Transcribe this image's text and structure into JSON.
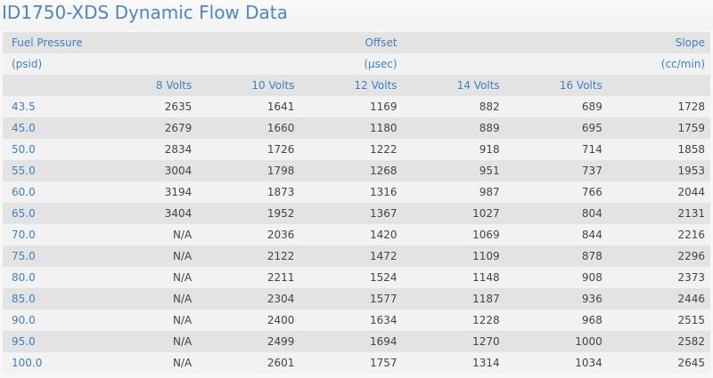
{
  "title": "ID1750-XDS Dynamic Flow Data",
  "header": {
    "fuel_pressure": "Fuel Pressure",
    "psid": "(psid)",
    "offset": "Offset",
    "usec": "(µsec)",
    "slope": "Slope",
    "ccmin": "(cc/min)",
    "volts": [
      "8 Volts",
      "10 Volts",
      "12 Volts",
      "14 Volts",
      "16 Volts"
    ]
  },
  "rows": [
    [
      "43.5",
      "2635",
      "1641",
      "1169",
      "882",
      "689",
      "1728"
    ],
    [
      "45.0",
      "2679",
      "1660",
      "1180",
      "889",
      "695",
      "1759"
    ],
    [
      "50.0",
      "2834",
      "1726",
      "1222",
      "918",
      "714",
      "1858"
    ],
    [
      "55.0",
      "3004",
      "1798",
      "1268",
      "951",
      "737",
      "1953"
    ],
    [
      "60.0",
      "3194",
      "1873",
      "1316",
      "987",
      "766",
      "2044"
    ],
    [
      "65.0",
      "3404",
      "1952",
      "1367",
      "1027",
      "804",
      "2131"
    ],
    [
      "70.0",
      "N/A",
      "2036",
      "1420",
      "1069",
      "844",
      "2216"
    ],
    [
      "75.0",
      "N/A",
      "2122",
      "1472",
      "1109",
      "878",
      "2296"
    ],
    [
      "80.0",
      "N/A",
      "2211",
      "1524",
      "1148",
      "908",
      "2373"
    ],
    [
      "85.0",
      "N/A",
      "2304",
      "1577",
      "1187",
      "936",
      "2446"
    ],
    [
      "90.0",
      "N/A",
      "2400",
      "1634",
      "1228",
      "968",
      "2515"
    ],
    [
      "95.0",
      "N/A",
      "2499",
      "1694",
      "1270",
      "1000",
      "2582"
    ],
    [
      "100.0",
      "N/A",
      "2601",
      "1757",
      "1314",
      "1034",
      "2645"
    ]
  ]
}
